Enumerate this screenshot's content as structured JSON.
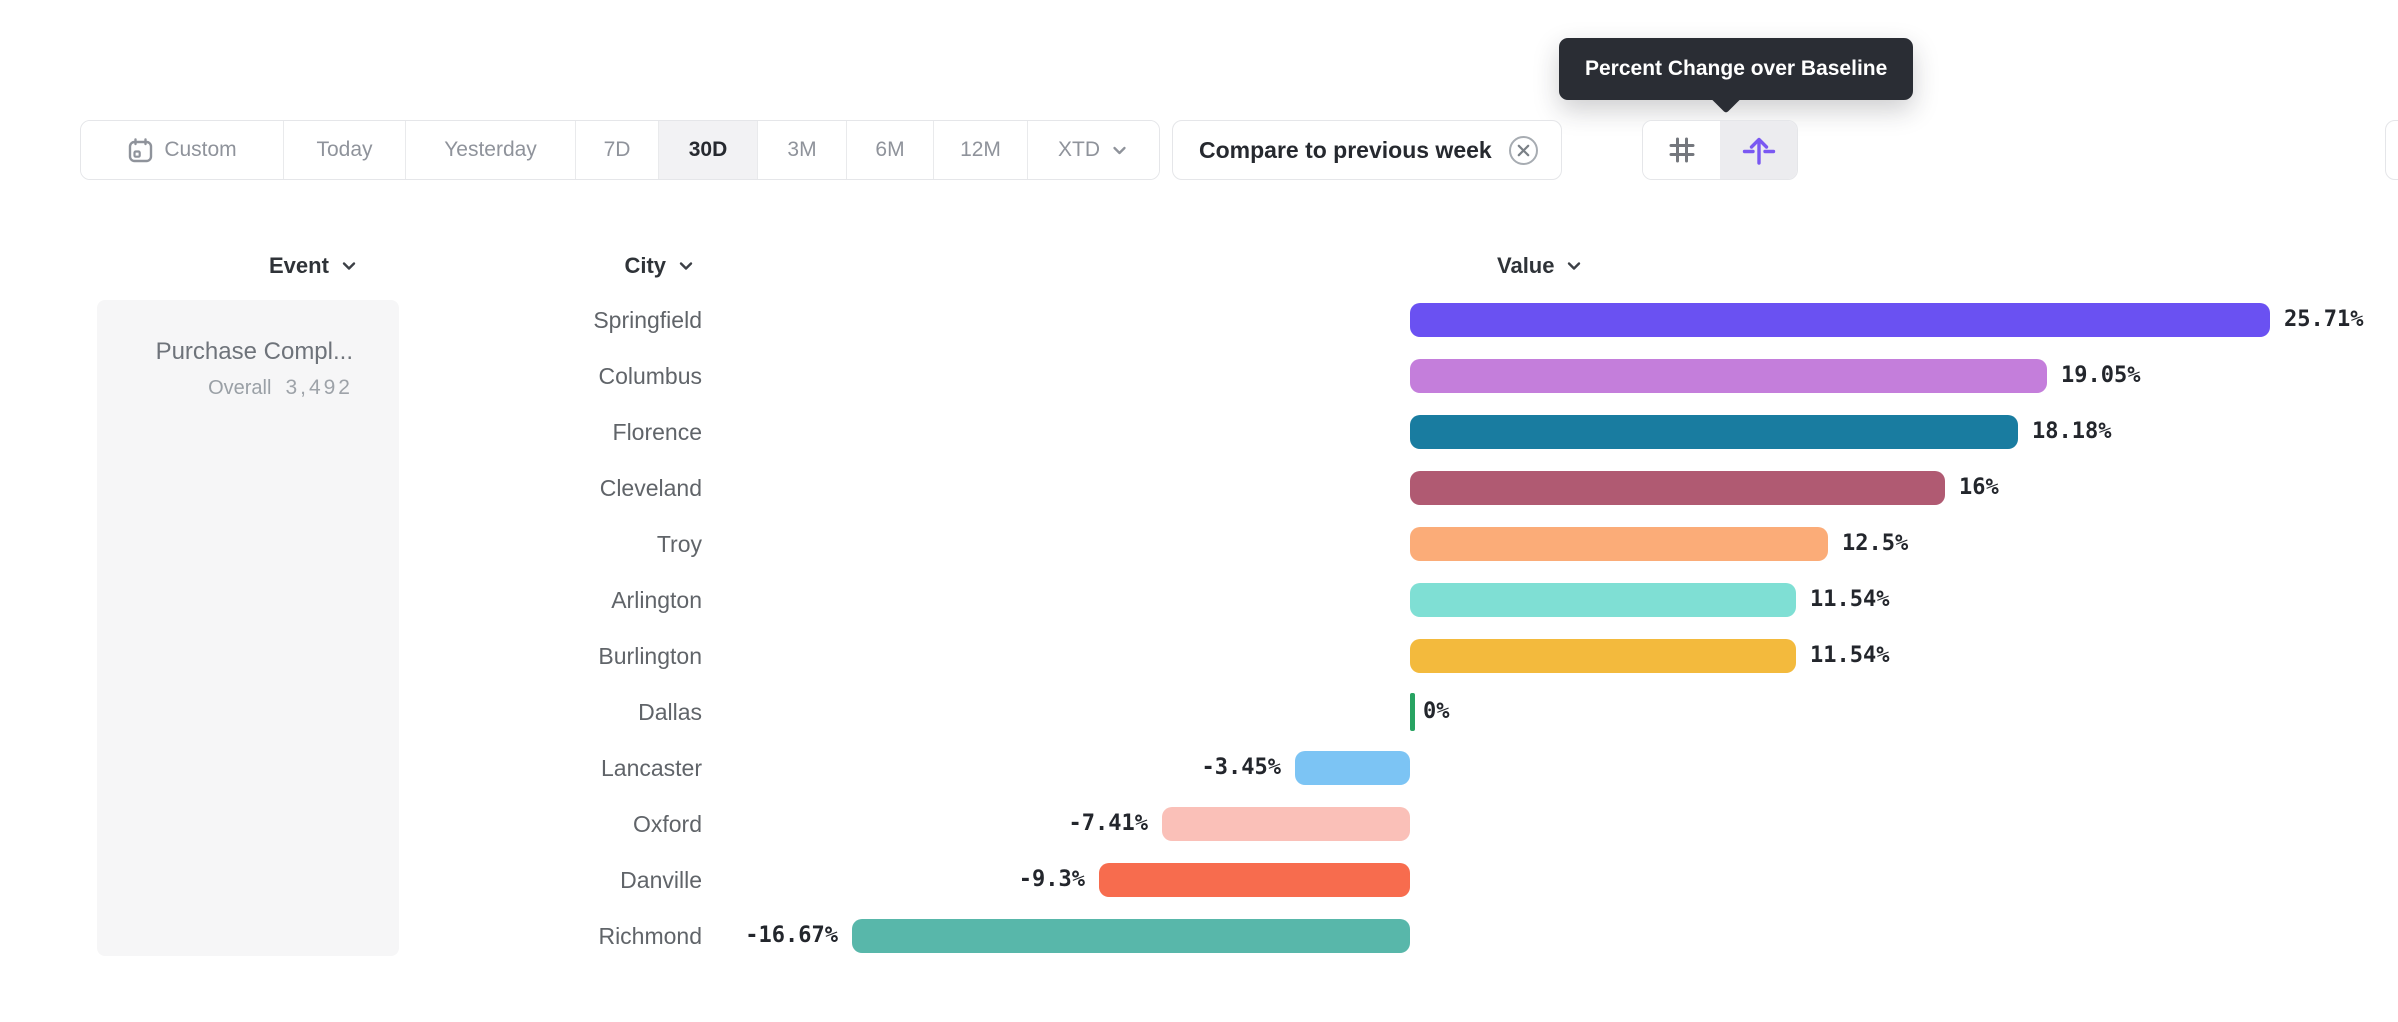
{
  "toolbar": {
    "ranges": [
      {
        "label": "Custom",
        "selected": false,
        "icon": "calendar-icon"
      },
      {
        "label": "Today",
        "selected": false
      },
      {
        "label": "Yesterday",
        "selected": false
      },
      {
        "label": "7D",
        "selected": false
      },
      {
        "label": "30D",
        "selected": true
      },
      {
        "label": "3M",
        "selected": false
      },
      {
        "label": "6M",
        "selected": false
      },
      {
        "label": "12M",
        "selected": false
      },
      {
        "label": "XTD",
        "selected": false,
        "chevron": true
      }
    ],
    "compare_label": "Compare to previous week",
    "view_modes": [
      {
        "name": "numbers-grid",
        "icon": "hash-grid-icon",
        "selected": false
      },
      {
        "name": "percent-change-baseline",
        "icon": "baseline-lift-icon",
        "selected": true
      }
    ],
    "accent_color": "#7a58f2"
  },
  "tooltip": {
    "text": "Percent Change over Baseline"
  },
  "columns": {
    "event": "Event",
    "city": "City",
    "value": "Value"
  },
  "event_card": {
    "name": "Purchase Compl...",
    "segment_label": "Overall",
    "segment_value": "3,492"
  },
  "chart_data": {
    "type": "bar",
    "orientation": "horizontal",
    "title": "Percent Change over Baseline",
    "unit": "percent",
    "baseline": 0,
    "xlim": [
      -16.67,
      25.71
    ],
    "categories": [
      "Springfield",
      "Columbus",
      "Florence",
      "Cleveland",
      "Troy",
      "Arlington",
      "Burlington",
      "Dallas",
      "Lancaster",
      "Oxford",
      "Danville",
      "Richmond"
    ],
    "values": [
      25.71,
      19.05,
      18.18,
      16,
      12.5,
      11.54,
      11.54,
      0,
      -3.45,
      -7.41,
      -9.3,
      -16.67
    ],
    "labels": [
      "25.71%",
      "19.05%",
      "18.18%",
      "16%",
      "12.5%",
      "11.54%",
      "11.54%",
      "0%",
      "-3.45%",
      "-7.41%",
      "-9.3%",
      "-16.67%"
    ],
    "colors": [
      "#6a51f2",
      "#c47edb",
      "#197ca0",
      "#b05a72",
      "#fbac78",
      "#7fdfd4",
      "#f3ba3d",
      "#28a362",
      "#7cc4f4",
      "#fac0b8",
      "#f76c4e",
      "#58b7aa"
    ],
    "zero_color": "#28a362"
  }
}
